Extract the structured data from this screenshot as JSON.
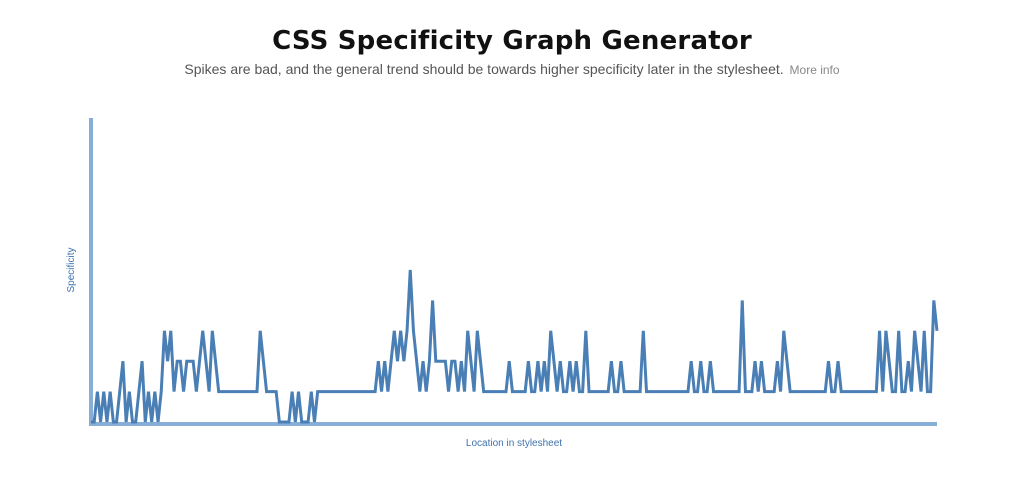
{
  "header": {
    "title": "CSS Specificity Graph Generator",
    "subtitle": "Spikes are bad, and the general trend should be towards higher specificity later in the stylesheet.",
    "more_info_label": "More info"
  },
  "colors": {
    "line": "#4a7fb5",
    "axis": "#87aed6",
    "label": "#3f73ad"
  },
  "chart_data": {
    "type": "line",
    "title": "",
    "xlabel": "Location in stylesheet",
    "ylabel": "Specificity",
    "ylim": [
      0,
      30
    ],
    "grid": false,
    "legend": "none",
    "series": [
      {
        "values": [
          0,
          0,
          3,
          0,
          3,
          0,
          3,
          0,
          0,
          3,
          6,
          0,
          3,
          0,
          0,
          3,
          6,
          0,
          3,
          0,
          3,
          0,
          3,
          9,
          6,
          9,
          3,
          6,
          6,
          3,
          6,
          6,
          6,
          3,
          6,
          9,
          6,
          3,
          9,
          6,
          3,
          3,
          3,
          3,
          3,
          3,
          3,
          3,
          3,
          3,
          3,
          3,
          3,
          9,
          6,
          3,
          3,
          3,
          3,
          0,
          0,
          0,
          0,
          3,
          0,
          3,
          0,
          0,
          0,
          3,
          0,
          3,
          3,
          3,
          3,
          3,
          3,
          3,
          3,
          3,
          3,
          3,
          3,
          3,
          3,
          3,
          3,
          3,
          3,
          3,
          6,
          3,
          6,
          3,
          6,
          9,
          6,
          9,
          6,
          9,
          15,
          9,
          6,
          3,
          6,
          3,
          6,
          12,
          6,
          6,
          6,
          6,
          3,
          6,
          6,
          3,
          6,
          3,
          9,
          6,
          3,
          9,
          6,
          3,
          3,
          3,
          3,
          3,
          3,
          3,
          3,
          6,
          3,
          3,
          3,
          3,
          3,
          6,
          3,
          3,
          6,
          3,
          6,
          3,
          9,
          6,
          3,
          6,
          3,
          3,
          6,
          3,
          6,
          3,
          3,
          9,
          3,
          3,
          3,
          3,
          3,
          3,
          3,
          6,
          3,
          3,
          6,
          3,
          3,
          3,
          3,
          3,
          3,
          9,
          3,
          3,
          3,
          3,
          3,
          3,
          3,
          3,
          3,
          3,
          3,
          3,
          3,
          3,
          6,
          3,
          3,
          6,
          3,
          3,
          6,
          3,
          3,
          3,
          3,
          3,
          3,
          3,
          3,
          3,
          12,
          3,
          3,
          3,
          6,
          3,
          6,
          3,
          3,
          3,
          3,
          6,
          3,
          9,
          6,
          3,
          3,
          3,
          3,
          3,
          3,
          3,
          3,
          3,
          3,
          3,
          3,
          6,
          3,
          3,
          6,
          3,
          3,
          3,
          3,
          3,
          3,
          3,
          3,
          3,
          3,
          3,
          3,
          9,
          3,
          9,
          6,
          3,
          3,
          9,
          3,
          3,
          6,
          3,
          9,
          6,
          3,
          9,
          3,
          3,
          12,
          9
        ]
      }
    ]
  }
}
